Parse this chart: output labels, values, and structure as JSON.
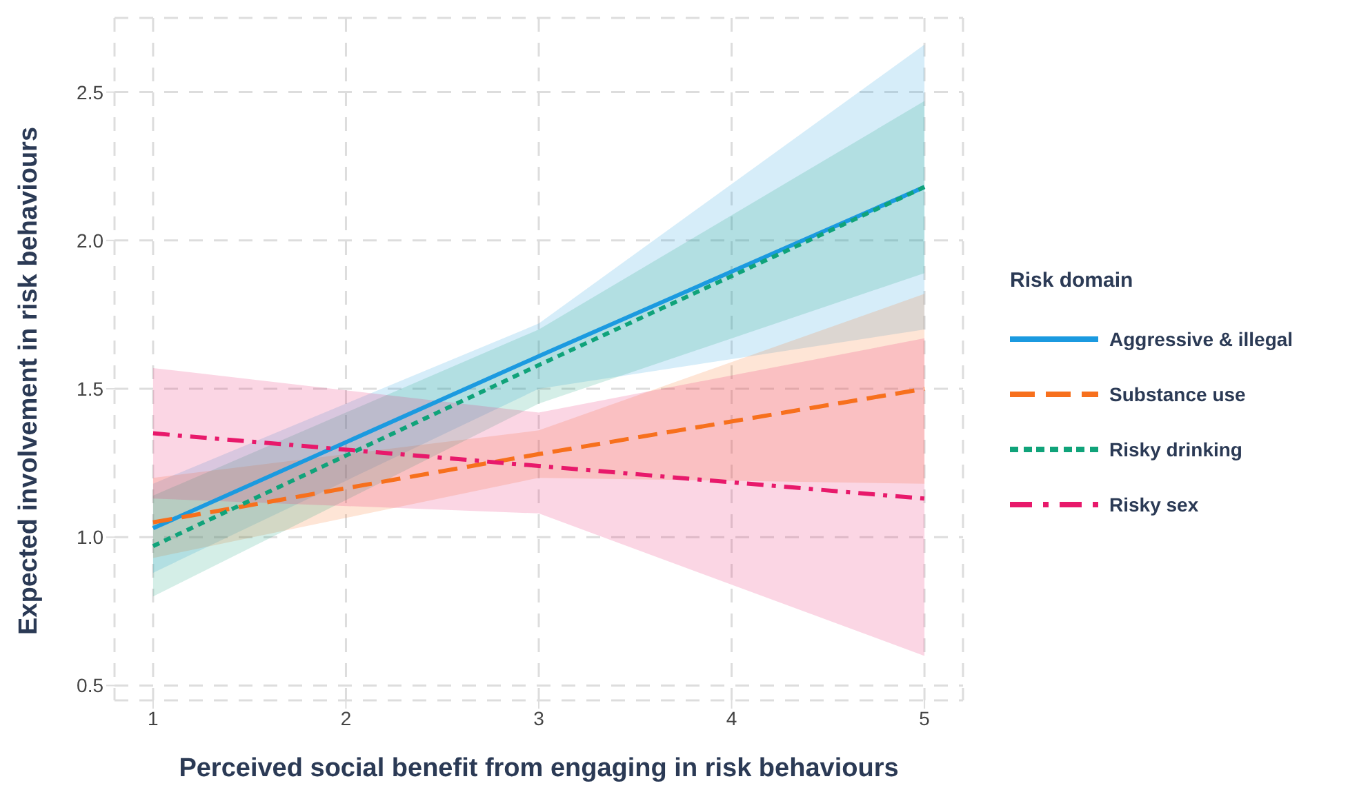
{
  "chart_data": {
    "type": "line",
    "xlabel": "Perceived social benefit from engaging in risk behaviours",
    "ylabel": "Expected involvement in risk behaviours",
    "legend_title": "Risk domain",
    "x": [
      1,
      3,
      5
    ],
    "series": [
      {
        "name": "Aggressive & illegal",
        "color": "#1b9ae0",
        "line_style": "solid",
        "values": [
          1.03,
          1.61,
          2.18
        ],
        "lower": [
          0.88,
          1.5,
          1.7
        ],
        "upper": [
          1.18,
          1.72,
          2.66
        ]
      },
      {
        "name": "Substance use",
        "color": "#f7701d",
        "line_style": "dashed",
        "values": [
          1.05,
          1.28,
          1.5
        ],
        "lower": [
          0.93,
          1.2,
          1.18
        ],
        "upper": [
          1.2,
          1.36,
          1.82
        ]
      },
      {
        "name": "Risky drinking",
        "color": "#10a37a",
        "line_style": "dotted",
        "values": [
          0.97,
          1.58,
          2.18
        ],
        "lower": [
          0.8,
          1.45,
          1.89
        ],
        "upper": [
          1.14,
          1.7,
          2.47
        ]
      },
      {
        "name": "Risky sex",
        "color": "#e8196b",
        "line_style": "dashdot",
        "values": [
          1.35,
          1.24,
          1.13
        ],
        "lower": [
          1.13,
          1.08,
          0.6
        ],
        "upper": [
          1.57,
          1.42,
          1.67
        ]
      }
    ],
    "xlim": [
      0.8,
      5.2
    ],
    "xticks": [
      1,
      2,
      3,
      4,
      5
    ],
    "ylim": [
      0.45,
      2.75
    ],
    "yticks": [
      0.5,
      {
        "value": 1,
        "label": "1.0"
      },
      1.5,
      {
        "value": 2,
        "label": "2.0"
      },
      2.5
    ],
    "grid": true,
    "legend": "right",
    "marker": "none"
  }
}
